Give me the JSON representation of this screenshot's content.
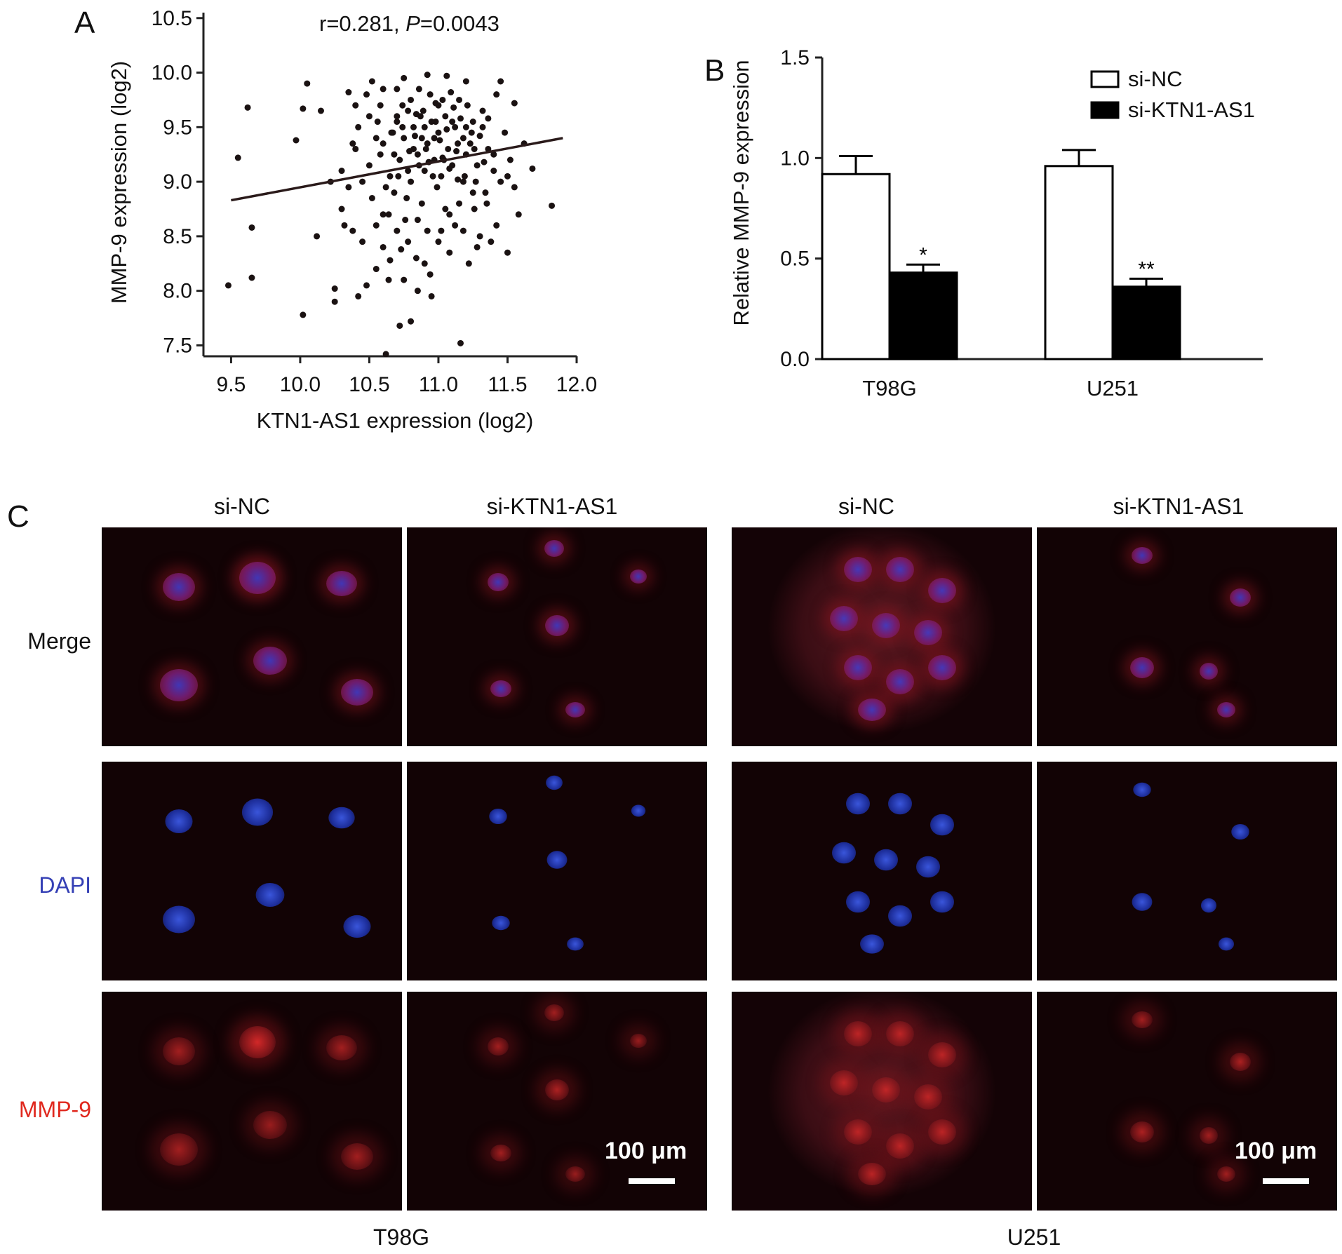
{
  "panels": {
    "a": "A",
    "b": "B",
    "c": "C"
  },
  "chart_data": [
    {
      "type": "scatter",
      "stat_label": "r=0.281, ",
      "stat_p_label": "P",
      "stat_p_value": "=0.0043",
      "xlabel": "KTN1-AS1 expression (log2)",
      "ylabel": "MMP-9 expression (log2)",
      "xlim": [
        9.3,
        12.0
      ],
      "ylim": [
        7.4,
        10.55
      ],
      "x_ticks": [
        "9.5",
        "10.0",
        "10.5",
        "11.0",
        "11.5",
        "12.0"
      ],
      "y_ticks": [
        "7.5",
        "8.0",
        "8.5",
        "9.0",
        "9.5",
        "10.0",
        "10.5"
      ],
      "regression_line": {
        "x": [
          9.5,
          11.9
        ],
        "y": [
          8.83,
          9.4
        ]
      },
      "points": [
        [
          9.48,
          8.05
        ],
        [
          9.55,
          9.22
        ],
        [
          9.62,
          9.68
        ],
        [
          9.65,
          8.58
        ],
        [
          9.65,
          8.12
        ],
        [
          9.97,
          9.38
        ],
        [
          10.02,
          9.67
        ],
        [
          10.05,
          9.9
        ],
        [
          10.02,
          7.78
        ],
        [
          10.12,
          8.5
        ],
        [
          10.15,
          9.65
        ],
        [
          10.22,
          9.0
        ],
        [
          10.25,
          8.02
        ],
        [
          10.25,
          7.9
        ],
        [
          10.3,
          8.75
        ],
        [
          10.32,
          8.6
        ],
        [
          10.35,
          9.82
        ],
        [
          10.38,
          8.55
        ],
        [
          10.4,
          9.7
        ],
        [
          10.42,
          7.95
        ],
        [
          10.45,
          8.45
        ],
        [
          10.48,
          8.05
        ],
        [
          10.5,
          9.6
        ],
        [
          10.52,
          9.92
        ],
        [
          10.55,
          8.2
        ],
        [
          10.58,
          9.25
        ],
        [
          10.6,
          8.7
        ],
        [
          10.62,
          7.42
        ],
        [
          10.64,
          8.1
        ],
        [
          10.66,
          9.45
        ],
        [
          10.68,
          8.9
        ],
        [
          10.7,
          9.6
        ],
        [
          10.72,
          7.68
        ],
        [
          10.73,
          8.38
        ],
        [
          10.75,
          9.95
        ],
        [
          10.76,
          8.65
        ],
        [
          10.78,
          9.1
        ],
        [
          10.8,
          7.72
        ],
        [
          10.82,
          9.3
        ],
        [
          10.84,
          8.3
        ],
        [
          10.86,
          9.85
        ],
        [
          10.88,
          8.8
        ],
        [
          10.9,
          9.5
        ],
        [
          10.92,
          9.98
        ],
        [
          10.94,
          8.15
        ],
        [
          10.95,
          7.95
        ],
        [
          10.97,
          9.4
        ],
        [
          10.99,
          8.95
        ],
        [
          11.0,
          9.7
        ],
        [
          11.02,
          8.55
        ],
        [
          11.04,
          9.2
        ],
        [
          11.06,
          9.97
        ],
        [
          11.08,
          8.35
        ],
        [
          11.1,
          9.55
        ],
        [
          11.12,
          8.6
        ],
        [
          11.14,
          9.35
        ],
        [
          11.16,
          7.52
        ],
        [
          11.18,
          9.0
        ],
        [
          11.2,
          9.92
        ],
        [
          11.22,
          8.25
        ],
        [
          11.24,
          9.45
        ],
        [
          11.26,
          8.75
        ],
        [
          11.28,
          9.15
        ],
        [
          11.3,
          8.5
        ],
        [
          11.32,
          9.65
        ],
        [
          11.34,
          8.9
        ],
        [
          11.36,
          9.3
        ],
        [
          11.38,
          8.45
        ],
        [
          11.4,
          9.1
        ],
        [
          11.42,
          8.6
        ],
        [
          11.45,
          9.92
        ],
        [
          11.48,
          9.45
        ],
        [
          11.5,
          8.35
        ],
        [
          11.52,
          9.2
        ],
        [
          11.55,
          9.72
        ],
        [
          11.58,
          8.7
        ],
        [
          11.62,
          9.35
        ],
        [
          11.68,
          9.12
        ],
        [
          11.82,
          8.78
        ],
        [
          10.6,
          9.35
        ],
        [
          10.65,
          9.05
        ],
        [
          10.7,
          9.55
        ],
        [
          10.72,
          9.2
        ],
        [
          10.75,
          9.4
        ],
        [
          10.78,
          9.65
        ],
        [
          10.8,
          9.0
        ],
        [
          10.82,
          9.5
        ],
        [
          10.85,
          9.25
        ],
        [
          10.87,
          9.6
        ],
        [
          10.9,
          9.1
        ],
        [
          10.92,
          9.35
        ],
        [
          10.95,
          9.55
        ],
        [
          10.97,
          9.2
        ],
        [
          11.0,
          9.45
        ],
        [
          11.02,
          9.05
        ],
        [
          11.05,
          9.6
        ],
        [
          11.07,
          9.3
        ],
        [
          11.1,
          9.15
        ],
        [
          11.12,
          9.5
        ],
        [
          11.15,
          9.75
        ],
        [
          11.18,
          9.4
        ],
        [
          11.2,
          9.25
        ],
        [
          11.25,
          9.55
        ],
        [
          10.5,
          9.15
        ],
        [
          10.55,
          9.4
        ],
        [
          10.58,
          9.7
        ],
        [
          10.62,
          8.95
        ],
        [
          10.68,
          9.25
        ],
        [
          10.7,
          9.85
        ],
        [
          10.74,
          9.5
        ],
        [
          10.77,
          8.85
        ],
        [
          10.8,
          9.75
        ],
        [
          10.83,
          9.42
        ],
        [
          10.86,
          9.15
        ],
        [
          10.89,
          9.65
        ],
        [
          10.91,
          9.3
        ],
        [
          10.94,
          9.8
        ],
        [
          10.96,
          9.05
        ],
        [
          10.98,
          9.55
        ],
        [
          11.01,
          9.38
        ],
        [
          11.03,
          9.75
        ],
        [
          11.06,
          9.48
        ],
        [
          11.08,
          9.12
        ],
        [
          11.11,
          9.68
        ],
        [
          11.13,
          9.28
        ],
        [
          11.16,
          9.58
        ],
        [
          11.19,
          9.05
        ],
        [
          11.21,
          9.7
        ],
        [
          11.23,
          9.35
        ],
        [
          11.27,
          9.0
        ],
        [
          11.3,
          9.42
        ],
        [
          11.33,
          9.18
        ],
        [
          11.36,
          9.58
        ],
        [
          10.4,
          9.3
        ],
        [
          10.42,
          9.5
        ],
        [
          10.45,
          9.0
        ],
        [
          10.48,
          9.8
        ],
        [
          10.52,
          8.85
        ],
        [
          10.56,
          9.55
        ],
        [
          10.6,
          9.85
        ],
        [
          10.64,
          8.7
        ],
        [
          10.67,
          9.45
        ],
        [
          10.71,
          9.05
        ],
        [
          10.74,
          9.7
        ],
        [
          10.79,
          9.28
        ],
        [
          10.84,
          9.62
        ],
        [
          10.88,
          9.4
        ],
        [
          10.93,
          9.18
        ],
        [
          10.98,
          9.72
        ],
        [
          11.03,
          9.22
        ],
        [
          11.09,
          9.82
        ],
        [
          11.14,
          9.02
        ],
        [
          11.2,
          9.5
        ],
        [
          11.26,
          9.3
        ],
        [
          11.32,
          9.5
        ],
        [
          11.4,
          9.25
        ],
        [
          11.45,
          9.0
        ],
        [
          10.3,
          9.1
        ],
        [
          10.35,
          8.95
        ],
        [
          10.38,
          9.35
        ],
        [
          10.55,
          8.6
        ],
        [
          10.6,
          8.4
        ],
        [
          10.7,
          8.55
        ],
        [
          10.78,
          8.45
        ],
        [
          10.85,
          8.65
        ],
        [
          10.9,
          8.25
        ],
        [
          11.0,
          8.45
        ],
        [
          11.05,
          8.75
        ],
        [
          11.15,
          8.8
        ],
        [
          11.25,
          8.9
        ],
        [
          11.35,
          8.8
        ],
        [
          11.42,
          9.8
        ],
        [
          11.5,
          9.05
        ],
        [
          11.55,
          8.95
        ],
        [
          10.65,
          8.28
        ],
        [
          10.75,
          8.1
        ],
        [
          10.85,
          8.0
        ],
        [
          10.92,
          8.55
        ],
        [
          11.08,
          8.7
        ],
        [
          11.18,
          8.55
        ],
        [
          11.28,
          8.4
        ]
      ]
    },
    {
      "type": "bar",
      "ylabel": "Relative MMP-9 expression",
      "ylim": [
        0,
        1.5
      ],
      "y_ticks": [
        "0.0",
        "0.5",
        "1.0",
        "1.5"
      ],
      "categories": [
        "T98G",
        "U251"
      ],
      "series": [
        {
          "name": "si-NC",
          "values": [
            0.92,
            0.96
          ],
          "errors": [
            0.09,
            0.08
          ],
          "color": "#ffffff",
          "significance": [
            "",
            ""
          ]
        },
        {
          "name": "si-KTN1-AS1",
          "values": [
            0.43,
            0.36
          ],
          "errors": [
            0.04,
            0.04
          ],
          "color": "#000000",
          "significance": [
            "*",
            "**"
          ]
        }
      ]
    }
  ],
  "panel_c": {
    "columns": [
      "si-NC",
      "si-KTN1-AS1",
      "si-NC",
      "si-KTN1-AS1"
    ],
    "rows": [
      {
        "label": "Merge",
        "color": "#111111"
      },
      {
        "label": "DAPI",
        "color": "#3540b5"
      },
      {
        "label": "MMP-9",
        "color": "#e0281e"
      }
    ],
    "scale_bar": "100 μm",
    "groups": [
      "T98G",
      "U251"
    ]
  }
}
